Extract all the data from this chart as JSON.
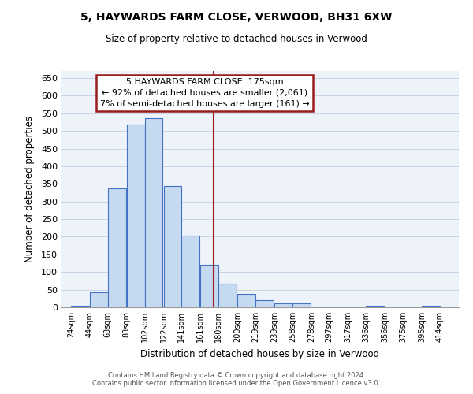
{
  "title": "5, HAYWARDS FARM CLOSE, VERWOOD, BH31 6XW",
  "subtitle": "Size of property relative to detached houses in Verwood",
  "xlabel": "Distribution of detached houses by size in Verwood",
  "ylabel": "Number of detached properties",
  "bar_left_edges": [
    24,
    44,
    63,
    83,
    102,
    122,
    141,
    161,
    180,
    200,
    219,
    239,
    258,
    278,
    297,
    317,
    336,
    356,
    375,
    395
  ],
  "bar_heights": [
    5,
    42,
    338,
    519,
    537,
    343,
    204,
    120,
    67,
    38,
    21,
    12,
    12,
    1,
    1,
    1,
    5,
    1,
    1,
    5
  ],
  "bin_width": 19,
  "bar_fill_color": "#c5d9f1",
  "bar_edge_color": "#4472c4",
  "vline_x": 175,
  "vline_color": "#9b1c1c",
  "annotation_title": "5 HAYWARDS FARM CLOSE: 175sqm",
  "annotation_line1": "← 92% of detached houses are smaller (2,061)",
  "annotation_line2": "7% of semi-detached houses are larger (161) →",
  "annotation_box_edgecolor": "#9b1c1c",
  "yticks": [
    0,
    50,
    100,
    150,
    200,
    250,
    300,
    350,
    400,
    450,
    500,
    550,
    600,
    650
  ],
  "xtick_labels": [
    "24sqm",
    "44sqm",
    "63sqm",
    "83sqm",
    "102sqm",
    "122sqm",
    "141sqm",
    "161sqm",
    "180sqm",
    "200sqm",
    "219sqm",
    "239sqm",
    "258sqm",
    "278sqm",
    "297sqm",
    "317sqm",
    "336sqm",
    "356sqm",
    "375sqm",
    "395sqm",
    "414sqm"
  ],
  "xtick_positions": [
    24,
    44,
    63,
    83,
    102,
    122,
    141,
    161,
    180,
    200,
    219,
    239,
    258,
    278,
    297,
    317,
    336,
    356,
    375,
    395,
    414
  ],
  "ylim": [
    0,
    670
  ],
  "xlim": [
    14,
    434
  ],
  "grid_color": "#c8d4e8",
  "bg_color": "#eef2f9",
  "footer1": "Contains HM Land Registry data © Crown copyright and database right 2024.",
  "footer2": "Contains public sector information licensed under the Open Government Licence v3.0."
}
